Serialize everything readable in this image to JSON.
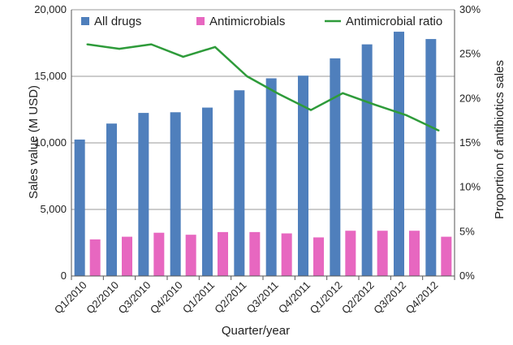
{
  "chart_data": {
    "type": "bar",
    "categories": [
      "Q1/2010",
      "Q2/2010",
      "Q3/2010",
      "Q4/2010",
      "Q1/2011",
      "Q2/2011",
      "Q3/2011",
      "Q4/2011",
      "Q1/2012",
      "Q2/2012",
      "Q3/2012",
      "Q4/2012"
    ],
    "series": [
      {
        "name": "All drugs",
        "kind": "bar",
        "axis": "left",
        "color": "#4f7fbc",
        "values": [
          10250,
          11450,
          12250,
          12300,
          12650,
          13950,
          14850,
          15050,
          16350,
          17400,
          18350,
          17800
        ]
      },
      {
        "name": "Antimicrobials",
        "kind": "bar",
        "axis": "left",
        "color": "#e767c0",
        "values": [
          2750,
          2950,
          3250,
          3100,
          3300,
          3300,
          3200,
          2900,
          3400,
          3400,
          3400,
          2950
        ]
      },
      {
        "name": "Antimicrobial ratio",
        "kind": "line",
        "axis": "right",
        "color": "#2e9b3a",
        "values": [
          26.1,
          25.6,
          26.1,
          24.7,
          25.8,
          22.5,
          20.5,
          18.7,
          20.6,
          19.3,
          18.1,
          16.4
        ]
      }
    ],
    "xlabel": "Quarter/year",
    "ylabel": "Sales value (M USD)",
    "y2label": "Proportion of antibiotics sales",
    "ylim": [
      0,
      20000
    ],
    "y2lim": [
      0,
      30
    ],
    "yticks": [
      0,
      5000,
      10000,
      15000,
      20000
    ],
    "ytick_labels": [
      "0",
      "5,000",
      "10,000",
      "15,000",
      "20,000"
    ],
    "y2ticks": [
      0,
      5,
      10,
      15,
      20,
      25,
      30
    ],
    "y2tick_labels": [
      "0%",
      "5%",
      "10%",
      "15%",
      "20%",
      "25%",
      "30%"
    ],
    "grid": "horizontal",
    "legend_position": "top"
  }
}
